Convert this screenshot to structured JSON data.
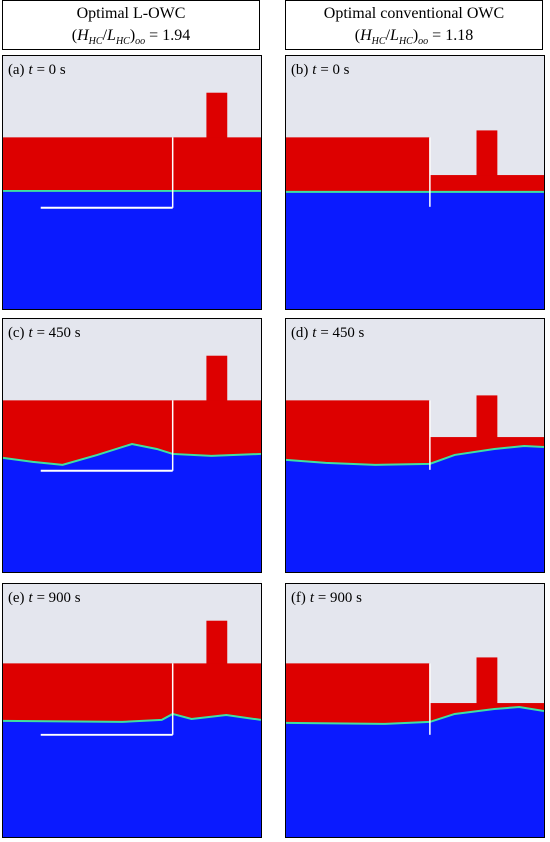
{
  "header": {
    "columns": [
      {
        "title": "Optimal L-OWC",
        "formula_parts": [
          "(",
          "H",
          "HC",
          "/",
          "L",
          "HC",
          ")",
          "oo"
        ],
        "value": "= 1.94"
      },
      {
        "title": "Optimal conventional OWC",
        "formula_parts": [
          "(",
          "H",
          "HC",
          "/",
          "L",
          "HC",
          ")",
          "oo"
        ],
        "value": "= 1.18"
      }
    ]
  },
  "panels": [
    {
      "letter": "(a)",
      "var": "t",
      "time": "= 0 s"
    },
    {
      "letter": "(b)",
      "var": "t",
      "time": "= 0 s"
    },
    {
      "letter": "(c)",
      "var": "t",
      "time": "= 450 s"
    },
    {
      "letter": "(d)",
      "var": "t",
      "time": "= 450 s"
    },
    {
      "letter": "(e)",
      "var": "t",
      "time": "= 900 s"
    },
    {
      "letter": "(f)",
      "var": "t",
      "time": "= 900 s"
    }
  ]
}
